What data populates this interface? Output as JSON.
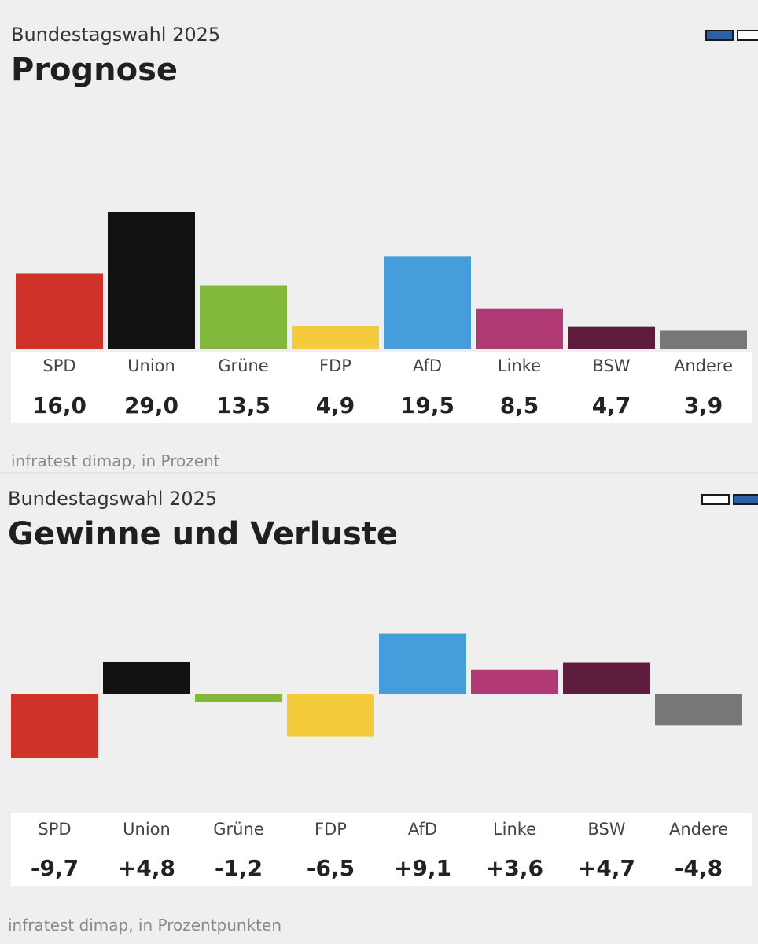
{
  "colors": {
    "SPD": "#cf3228",
    "Union": "#121212",
    "Grüne": "#82b83c",
    "FDP": "#f5cb3e",
    "AfD": "#459ddb",
    "Linke": "#b23a74",
    "BSW": "#5d1c3c",
    "Andere": "#777777"
  },
  "chart_data": [
    {
      "type": "bar",
      "subtitle": "Bundestagswahl 2025",
      "title": "Prognose",
      "source": "infratest dimap, in Prozent",
      "categories": [
        "SPD",
        "Union",
        "Grüne",
        "FDP",
        "AfD",
        "Linke",
        "BSW",
        "Andere"
      ],
      "values": [
        16.0,
        29.0,
        13.5,
        4.9,
        19.5,
        8.5,
        4.7,
        3.9
      ],
      "value_labels": [
        "16,0",
        "29,0",
        "13,5",
        "4,9",
        "19,5",
        "8,5",
        "4,7",
        "3,9"
      ],
      "ylim": [
        0,
        29.0
      ],
      "grid": false,
      "legend": "none"
    },
    {
      "type": "bar",
      "subtitle": "Bundestagswahl 2025",
      "title": "Gewinne und Verluste",
      "source": "infratest dimap, in Prozentpunkten",
      "categories": [
        "SPD",
        "Union",
        "Grüne",
        "FDP",
        "AfD",
        "Linke",
        "BSW",
        "Andere"
      ],
      "values": [
        -9.7,
        4.8,
        -1.2,
        -6.5,
        9.1,
        3.6,
        4.7,
        -4.8
      ],
      "value_labels": [
        "-9,7",
        "+4,8",
        "-1,2",
        "-6,5",
        "+9,1",
        "+3,6",
        "+4,7",
        "-4,8"
      ],
      "ylim": [
        -9.7,
        9.1
      ],
      "grid": false,
      "legend": "none"
    }
  ]
}
